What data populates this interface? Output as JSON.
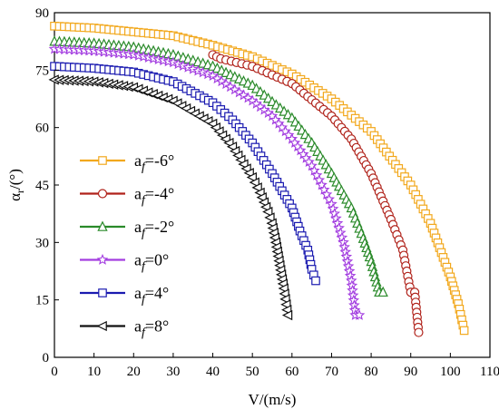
{
  "chart_data": {
    "type": "line",
    "xlabel": "V/(m/s)",
    "ylabel_main": "α",
    "ylabel_sub": "r",
    "ylabel_unit": "/(°)",
    "xlim": [
      0,
      110
    ],
    "ylim": [
      0,
      90
    ],
    "xticks": [
      "0",
      "10",
      "20",
      "30",
      "40",
      "50",
      "60",
      "70",
      "80",
      "90",
      "100",
      "110"
    ],
    "yticks": [
      "0",
      "15",
      "30",
      "45",
      "60",
      "75",
      "90"
    ],
    "grid": false,
    "legend_position": "left-middle",
    "series": [
      {
        "name": "af=-6°",
        "legend_main": "a",
        "legend_sub": "f",
        "legend_rest": "=-6°",
        "color": "#f2a81d",
        "marker": "square",
        "x": [
          0,
          10,
          20,
          30,
          40,
          50,
          60,
          70,
          80,
          90,
          95,
          100,
          102,
          103.5
        ],
        "y": [
          86.5,
          86,
          85,
          84,
          81.5,
          78.5,
          74,
          67.5,
          59,
          45,
          35,
          21,
          14,
          7
        ]
      },
      {
        "name": "af=-4°",
        "legend_main": "a",
        "legend_sub": "f",
        "legend_rest": "=-4°",
        "color": "#b0221a",
        "marker": "circle",
        "x": [
          40,
          42,
          50,
          60,
          70,
          75,
          80,
          85,
          88,
          90,
          91,
          92
        ],
        "y": [
          79,
          78,
          76,
          71.5,
          63,
          57,
          48,
          36,
          28,
          17,
          17,
          6.5
        ]
      },
      {
        "name": "af=-2°",
        "legend_main": "a",
        "legend_sub": "f",
        "legend_rest": "=-2°",
        "color": "#2a8a2a",
        "marker": "triangle",
        "x": [
          0,
          10,
          20,
          30,
          40,
          50,
          60,
          65,
          70,
          75,
          78,
          80,
          82,
          83
        ],
        "y": [
          82.5,
          82,
          81,
          79,
          76,
          71,
          62.5,
          56,
          48,
          39,
          31,
          25,
          17,
          17
        ]
      },
      {
        "name": "af=0°",
        "legend_main": "a",
        "legend_sub": "f",
        "legend_rest": "=0°",
        "color": "#a33de0",
        "marker": "star",
        "x": [
          0,
          10,
          20,
          30,
          40,
          50,
          55,
          60,
          65,
          70,
          73,
          75,
          76,
          77
        ],
        "y": [
          80.5,
          80,
          79,
          77,
          73.5,
          67,
          63,
          57,
          50,
          40,
          30,
          20,
          11,
          11
        ]
      },
      {
        "name": "af=4°",
        "legend_main": "a",
        "legend_sub": "f",
        "legend_rest": "=4°",
        "color": "#1a1ab0",
        "marker": "square",
        "x": [
          0,
          10,
          20,
          30,
          40,
          45,
          50,
          55,
          60,
          62,
          64,
          65,
          66
        ],
        "y": [
          76,
          75.5,
          74.5,
          72,
          66.5,
          62,
          56,
          48,
          39,
          33,
          28,
          23,
          20
        ]
      },
      {
        "name": "af=8°",
        "legend_main": "a",
        "legend_sub": "f",
        "legend_rest": "=8°",
        "color": "#111111",
        "marker": "tri-left",
        "x": [
          0,
          10,
          20,
          30,
          40,
          45,
          50,
          52,
          54,
          55,
          56,
          57,
          58,
          59
        ],
        "y": [
          72.5,
          72,
          70.5,
          67,
          61,
          55,
          47,
          43,
          38,
          35,
          30,
          24,
          18,
          11
        ]
      }
    ]
  }
}
